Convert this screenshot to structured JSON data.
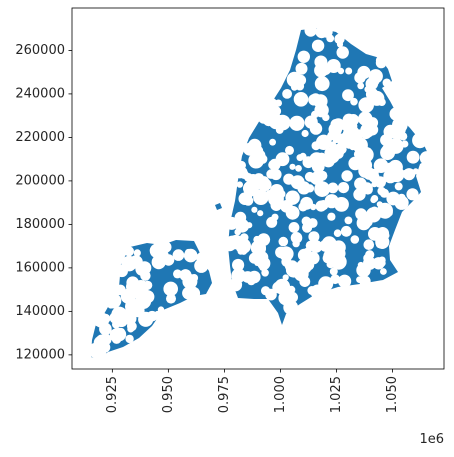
{
  "chart_data": {
    "type": "map",
    "fill_color": "#1f77b4",
    "hole_color": "#ffffff",
    "x_axis": {
      "ticks": [
        0.925,
        0.95,
        0.975,
        1.0,
        1.025,
        1.05
      ],
      "tick_labels": [
        "0.925",
        "0.950",
        "0.975",
        "1.000",
        "1.025",
        "1.050"
      ],
      "offset_label": "1e6",
      "range": [
        0.907,
        1.073
      ]
    },
    "y_axis": {
      "ticks": [
        120000,
        140000,
        160000,
        180000,
        200000,
        220000,
        240000,
        260000
      ],
      "tick_labels": [
        "120000",
        "140000",
        "160000",
        "180000",
        "200000",
        "220000",
        "240000",
        "260000"
      ],
      "range": [
        113500,
        279500
      ]
    },
    "grid": false
  }
}
